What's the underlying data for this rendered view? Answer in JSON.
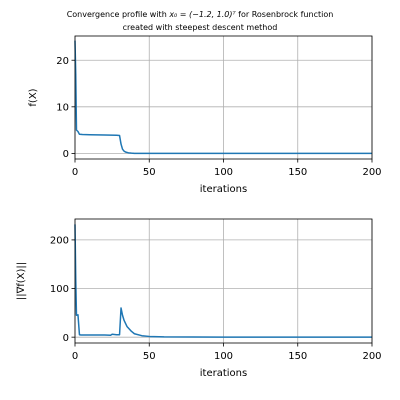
{
  "title_line1_prefix": "Convergence profile with ",
  "title_line1_math": "x₀ = (−1.2, 1.0)ᵀ",
  "title_line1_suffix": " for Rosenbrock function",
  "title_line2": "created with steepest descent method",
  "colors": {
    "series": "#1f77b4",
    "grid": "#b0b0b0",
    "axes": "#000000"
  },
  "chart_data": [
    {
      "type": "line",
      "xlabel": "iterations",
      "ylabel": "f(X)",
      "xlim": [
        0,
        200
      ],
      "ylim": [
        -1.2,
        25.2
      ],
      "xticks": [
        0,
        50,
        100,
        150,
        200
      ],
      "yticks": [
        0,
        10,
        20
      ],
      "grid": true,
      "series": [
        {
          "x": [
            0,
            0.5,
            1,
            2,
            3,
            5,
            10,
            20,
            28,
            30,
            31,
            32,
            33,
            34,
            36,
            38,
            40,
            45,
            50,
            60,
            100,
            150,
            200
          ],
          "y": [
            24.2,
            17.0,
            5.0,
            4.7,
            4.1,
            4.05,
            4.0,
            3.95,
            3.9,
            3.85,
            2.0,
            0.9,
            0.5,
            0.3,
            0.12,
            0.05,
            0.02,
            0.01,
            0.005,
            0.001,
            0.0,
            0.0,
            0.0
          ]
        }
      ]
    },
    {
      "type": "line",
      "xlabel": "iterations",
      "ylabel": "||∇f(X)||",
      "xlim": [
        0,
        200
      ],
      "ylim": [
        -12,
        243
      ],
      "xticks": [
        0,
        50,
        100,
        150,
        200
      ],
      "yticks": [
        0,
        100,
        200
      ],
      "grid": true,
      "series": [
        {
          "x": [
            0,
            0.5,
            1,
            2,
            3,
            4,
            6,
            10,
            20,
            24,
            25,
            28,
            30,
            31,
            32,
            33,
            35,
            38,
            40,
            45,
            50,
            60,
            100,
            150,
            200
          ],
          "y": [
            232,
            120,
            45,
            46,
            5,
            4.5,
            4.5,
            4.5,
            4.5,
            4.0,
            6.0,
            5.0,
            5.0,
            60,
            45,
            35,
            22,
            12,
            7,
            3,
            1.5,
            0.5,
            0.0,
            0.0,
            0.0
          ]
        }
      ]
    }
  ]
}
